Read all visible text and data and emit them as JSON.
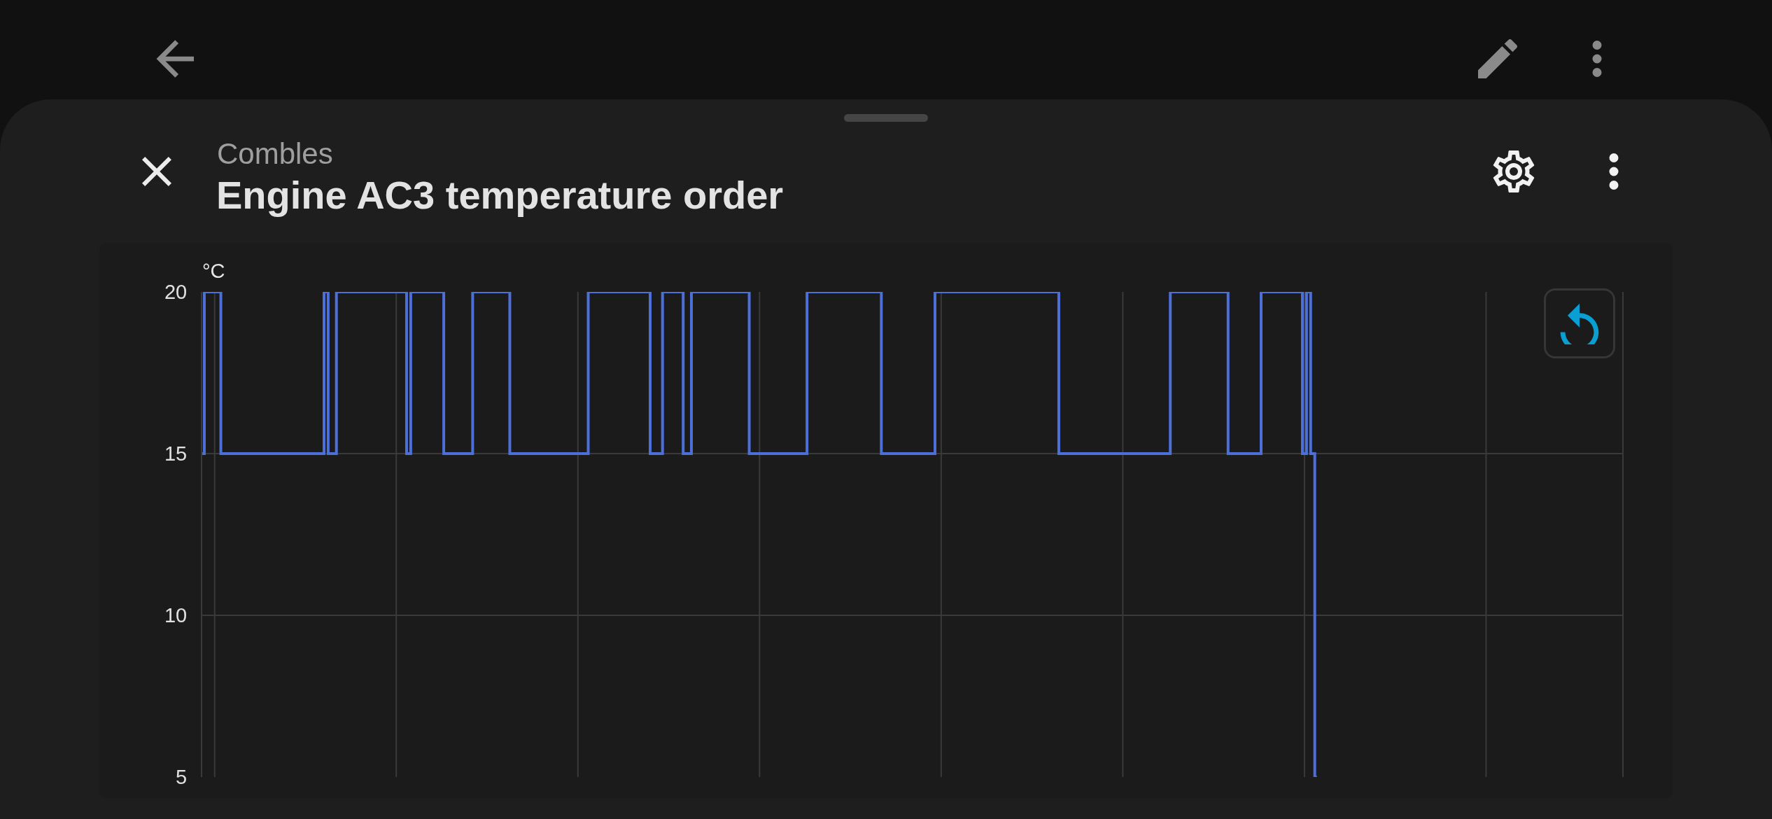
{
  "chart_data": {
    "type": "step",
    "title": "Engine AC3 temperature order",
    "subtitle": "Combles",
    "ylabel": "°C",
    "categories": [
      null,
      null,
      null,
      null,
      null,
      null,
      null,
      null,
      null,
      null,
      null,
      null,
      null,
      null,
      null,
      null,
      null,
      null,
      null,
      null,
      null,
      null,
      null,
      null,
      null,
      null,
      null,
      null,
      null,
      null,
      null,
      null,
      null,
      null,
      null,
      null,
      null,
      null,
      null,
      null,
      null,
      null,
      null,
      null,
      null,
      null,
      null,
      null,
      null,
      null,
      null,
      null,
      null,
      null,
      null,
      null,
      null,
      null,
      null,
      null,
      null,
      null,
      null,
      null,
      null,
      null,
      null,
      null,
      null,
      null,
      null,
      null,
      null,
      null,
      null,
      null,
      null,
      null,
      null,
      null,
      null,
      null,
      null,
      null,
      null,
      null,
      null,
      null,
      null,
      null,
      null,
      null,
      null,
      null,
      null,
      null,
      null,
      null,
      null,
      null,
      null,
      null,
      null,
      null,
      null,
      null,
      null,
      null,
      null,
      null,
      null,
      null,
      null,
      null,
      null,
      null,
      null,
      null,
      null,
      null,
      null,
      null,
      null,
      null,
      null,
      null,
      null,
      null,
      null,
      null,
      null,
      null,
      null,
      null,
      null,
      null,
      null,
      null,
      null,
      null,
      null,
      null,
      null,
      null,
      null,
      null,
      null,
      null,
      null,
      null,
      null,
      null,
      null,
      null,
      null,
      null,
      null,
      null,
      null,
      null,
      null,
      null,
      null,
      null,
      null,
      null,
      null,
      null,
      null,
      null,
      null,
      null,
      null,
      null,
      null,
      null,
      null,
      null,
      null,
      null,
      null,
      null,
      null,
      null,
      null,
      null,
      null,
      null,
      null,
      null,
      null,
      null,
      null,
      null,
      null,
      null,
      null,
      null,
      null,
      null,
      null,
      null,
      null,
      null,
      null,
      null,
      null,
      null,
      null,
      null,
      null,
      null,
      null,
      null,
      null,
      null,
      null,
      null,
      null,
      null,
      null,
      null,
      null,
      null,
      null,
      null,
      null,
      null,
      null,
      null,
      null,
      null,
      null,
      null,
      null,
      null,
      null,
      null,
      null,
      null,
      null,
      null,
      null,
      null,
      null,
      null,
      null,
      null,
      null,
      null,
      null,
      null,
      null,
      null,
      null,
      null,
      null,
      null,
      null,
      null,
      null,
      null,
      null,
      null,
      null,
      null,
      null,
      null,
      null,
      null,
      null
    ],
    "values": [
      15,
      20,
      20,
      20,
      20,
      15,
      15,
      15,
      15,
      15,
      15,
      15,
      15,
      15,
      15,
      15,
      15,
      15,
      15,
      15,
      15,
      15,
      15,
      15,
      15,
      15,
      15,
      15,
      15,
      15,
      20,
      15,
      15,
      20,
      20,
      20,
      20,
      20,
      20,
      20,
      20,
      20,
      20,
      20,
      20,
      20,
      20,
      20,
      20,
      20,
      15,
      20,
      20,
      20,
      20,
      20,
      20,
      20,
      20,
      15,
      15,
      15,
      15,
      15,
      15,
      15,
      20,
      20,
      20,
      20,
      20,
      20,
      20,
      20,
      20,
      15,
      15,
      15,
      15,
      15,
      15,
      15,
      15,
      15,
      15,
      15,
      15,
      15,
      15,
      15,
      15,
      15,
      15,
      15,
      20,
      20,
      20,
      20,
      20,
      20,
      20,
      20,
      20,
      20,
      20,
      20,
      20,
      20,
      20,
      15,
      15,
      15,
      20,
      20,
      20,
      20,
      20,
      15,
      15,
      20,
      20,
      20,
      20,
      20,
      20,
      20,
      20,
      20,
      20,
      20,
      20,
      20,
      20,
      15,
      15,
      15,
      15,
      15,
      15,
      15,
      15,
      15,
      15,
      15,
      15,
      15,
      15,
      20,
      20,
      20,
      20,
      20,
      20,
      20,
      20,
      20,
      20,
      20,
      20,
      20,
      20,
      20,
      20,
      20,
      20,
      15,
      15,
      15,
      15,
      15,
      15,
      15,
      15,
      15,
      15,
      15,
      15,
      15,
      20,
      20,
      20,
      20,
      20,
      20,
      20,
      20,
      20,
      20,
      20,
      20,
      20,
      20,
      20,
      20,
      20,
      20,
      20,
      20,
      20,
      20,
      20,
      20,
      20,
      20,
      20,
      20,
      20,
      20,
      15,
      15,
      15,
      15,
      15,
      15,
      15,
      15,
      15,
      15,
      15,
      15,
      15,
      15,
      15,
      15,
      15,
      15,
      15,
      15,
      15,
      15,
      15,
      15,
      15,
      15,
      15,
      20,
      20,
      20,
      20,
      20,
      20,
      20,
      20,
      20,
      20,
      20,
      20,
      20,
      20,
      15,
      15,
      15,
      15,
      15,
      15,
      15,
      15,
      20,
      20,
      20,
      20,
      20,
      20,
      20,
      20,
      20,
      20,
      15,
      20,
      15,
      5
    ],
    "color": "#4c6fd8",
    "ylim": [
      5,
      20
    ],
    "yticks": [
      5,
      10,
      15,
      20
    ],
    "grid": true,
    "tick_labels": "y"
  }
}
